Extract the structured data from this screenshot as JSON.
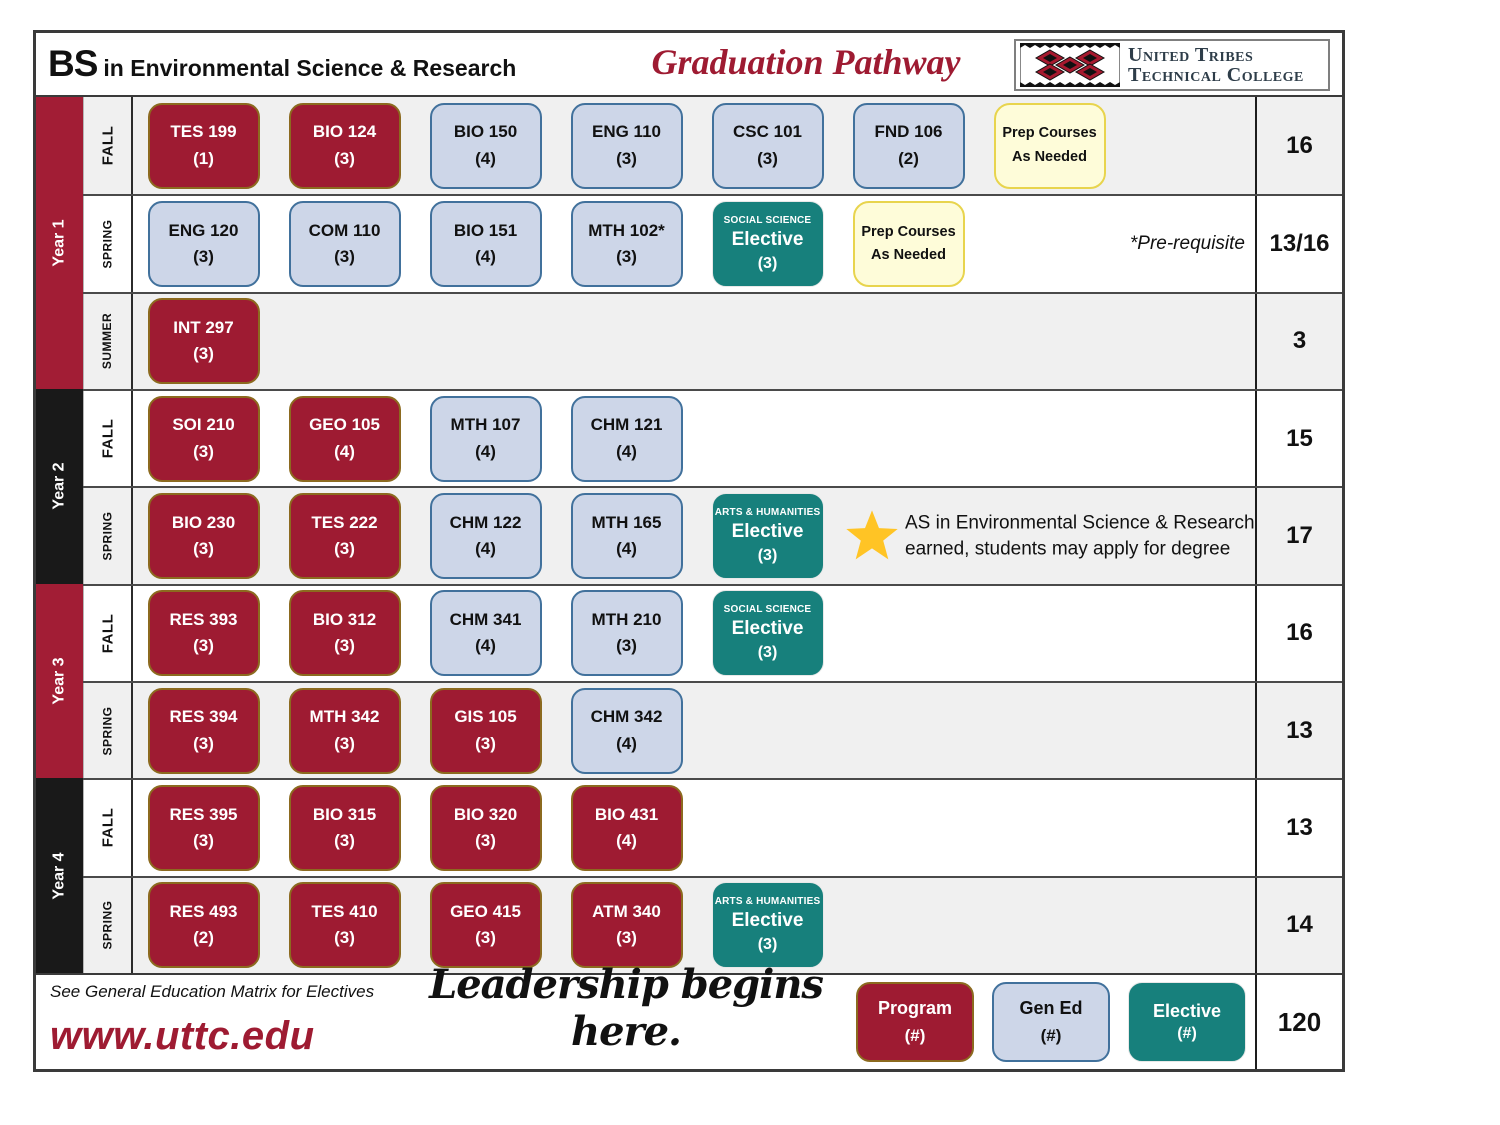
{
  "header": {
    "degree": "BS",
    "degree_rest": "in Environmental Science & Research",
    "title": "Graduation Pathway",
    "logo_line1": "United Tribes",
    "logo_line2": "Technical College"
  },
  "colors": {
    "program_fill": "#9E1B32",
    "program_border": "#8C6A1F",
    "gened_fill": "#CDD6E8",
    "gened_border": "#41719C",
    "elective_fill": "#17807C",
    "prep_fill": "#FEFCD9",
    "prep_border": "#E8D44D",
    "sidebar_red": "#A21D35",
    "sidebar_black": "#191919",
    "title_red": "#9E1B32",
    "star_gold": "#FFC425",
    "shaded_row": "#F0F0F0"
  },
  "years": [
    {
      "label": "Year 1",
      "color": "red",
      "row_span": 3
    },
    {
      "label": "Year 2",
      "color": "black",
      "row_span": 2
    },
    {
      "label": "Year 3",
      "color": "red",
      "row_span": 2
    },
    {
      "label": "Year 4",
      "color": "black",
      "row_span": 2
    }
  ],
  "rows": [
    {
      "semester": "FALL",
      "shaded": true,
      "total": "16",
      "slots": [
        {
          "type": "program",
          "code": "TES 199",
          "credits": "(1)"
        },
        {
          "type": "program",
          "code": "BIO 124",
          "credits": "(3)"
        },
        {
          "type": "gened",
          "code": "BIO 150",
          "credits": "(4)"
        },
        {
          "type": "gened",
          "code": "ENG 110",
          "credits": "(3)"
        },
        {
          "type": "gened",
          "code": "CSC 101",
          "credits": "(3)"
        },
        {
          "type": "gened",
          "code": "FND 106",
          "credits": "(2)"
        },
        {
          "type": "prep",
          "line1": "Prep Courses",
          "line2": "As Needed"
        }
      ]
    },
    {
      "semester": "SPRING",
      "shaded": false,
      "total": "13/16",
      "note": "*Pre-requisite",
      "slots": [
        {
          "type": "gened",
          "code": "ENG 120",
          "credits": "(3)"
        },
        {
          "type": "gened",
          "code": "COM 110",
          "credits": "(3)"
        },
        {
          "type": "gened",
          "code": "BIO 151",
          "credits": "(4)"
        },
        {
          "type": "gened",
          "code": "MTH 102*",
          "credits": "(3)"
        },
        {
          "type": "elective",
          "category": "SOCIAL SCIENCE",
          "label": "Elective",
          "credits": "(3)"
        },
        {
          "type": "prep",
          "line1": "Prep Courses",
          "line2": "As Needed"
        },
        null
      ]
    },
    {
      "semester": "SUMMER",
      "shaded": true,
      "total": "3",
      "slots": [
        {
          "type": "program",
          "code": "INT 297",
          "credits": "(3)"
        },
        null,
        null,
        null,
        null,
        null,
        null
      ]
    },
    {
      "semester": "FALL",
      "shaded": false,
      "total": "15",
      "slots": [
        {
          "type": "program",
          "code": "SOI 210",
          "credits": "(3)"
        },
        {
          "type": "program",
          "code": "GEO 105",
          "credits": "(4)"
        },
        {
          "type": "gened",
          "code": "MTH 107",
          "credits": "(4)"
        },
        {
          "type": "gened",
          "code": "CHM 121",
          "credits": "(4)"
        },
        null,
        null,
        null
      ]
    },
    {
      "semester": "SPRING",
      "shaded": true,
      "total": "17",
      "star_note": [
        "AS in Environmental Science & Research",
        "earned, students may apply for degree"
      ],
      "slots": [
        {
          "type": "program",
          "code": "BIO 230",
          "credits": "(3)"
        },
        {
          "type": "program",
          "code": "TES 222",
          "credits": "(3)"
        },
        {
          "type": "gened",
          "code": "CHM 122",
          "credits": "(4)"
        },
        {
          "type": "gened",
          "code": "MTH 165",
          "credits": "(4)"
        },
        {
          "type": "elective",
          "category": "ARTS & HUMANITIES",
          "label": "Elective",
          "credits": "(3)"
        },
        null,
        null
      ]
    },
    {
      "semester": "FALL",
      "shaded": false,
      "total": "16",
      "slots": [
        {
          "type": "program",
          "code": "RES 393",
          "credits": "(3)"
        },
        {
          "type": "program",
          "code": "BIO 312",
          "credits": "(3)"
        },
        {
          "type": "gened",
          "code": "CHM 341",
          "credits": "(4)"
        },
        {
          "type": "gened",
          "code": "MTH 210",
          "credits": "(3)"
        },
        {
          "type": "elective",
          "category": "SOCIAL SCIENCE",
          "label": "Elective",
          "credits": "(3)"
        },
        null,
        null
      ]
    },
    {
      "semester": "SPRING",
      "shaded": true,
      "total": "13",
      "slots": [
        {
          "type": "program",
          "code": "RES 394",
          "credits": "(3)"
        },
        {
          "type": "program",
          "code": "MTH 342",
          "credits": "(3)"
        },
        {
          "type": "program",
          "code": "GIS 105",
          "credits": "(3)"
        },
        {
          "type": "gened",
          "code": "CHM 342",
          "credits": "(4)"
        },
        null,
        null,
        null
      ]
    },
    {
      "semester": "FALL",
      "shaded": false,
      "total": "13",
      "slots": [
        {
          "type": "program",
          "code": "RES 395",
          "credits": "(3)"
        },
        {
          "type": "program",
          "code": "BIO 315",
          "credits": "(3)"
        },
        {
          "type": "program",
          "code": "BIO 320",
          "credits": "(3)"
        },
        {
          "type": "program",
          "code": "BIO 431",
          "credits": "(4)"
        },
        null,
        null,
        null
      ]
    },
    {
      "semester": "SPRING",
      "shaded": true,
      "total": "14",
      "slots": [
        {
          "type": "program",
          "code": "RES 493",
          "credits": "(2)"
        },
        {
          "type": "program",
          "code": "TES 410",
          "credits": "(3)"
        },
        {
          "type": "program",
          "code": "GEO 415",
          "credits": "(3)"
        },
        {
          "type": "program",
          "code": "ATM 340",
          "credits": "(3)"
        },
        {
          "type": "elective",
          "category": "ARTS & HUMANITIES",
          "label": "Elective",
          "credits": "(3)"
        },
        null,
        null
      ]
    }
  ],
  "footer": {
    "see_note": "See General Education Matrix for Electives",
    "website": "www.uttc.edu",
    "tagline": "Leadership begins here.",
    "legend": [
      {
        "type": "program",
        "label": "Program",
        "credits": "(#)"
      },
      {
        "type": "gened",
        "label": "Gen Ed",
        "credits": "(#)"
      },
      {
        "type": "elective",
        "label": "Elective",
        "credits": "(#)"
      }
    ],
    "total": "120"
  }
}
